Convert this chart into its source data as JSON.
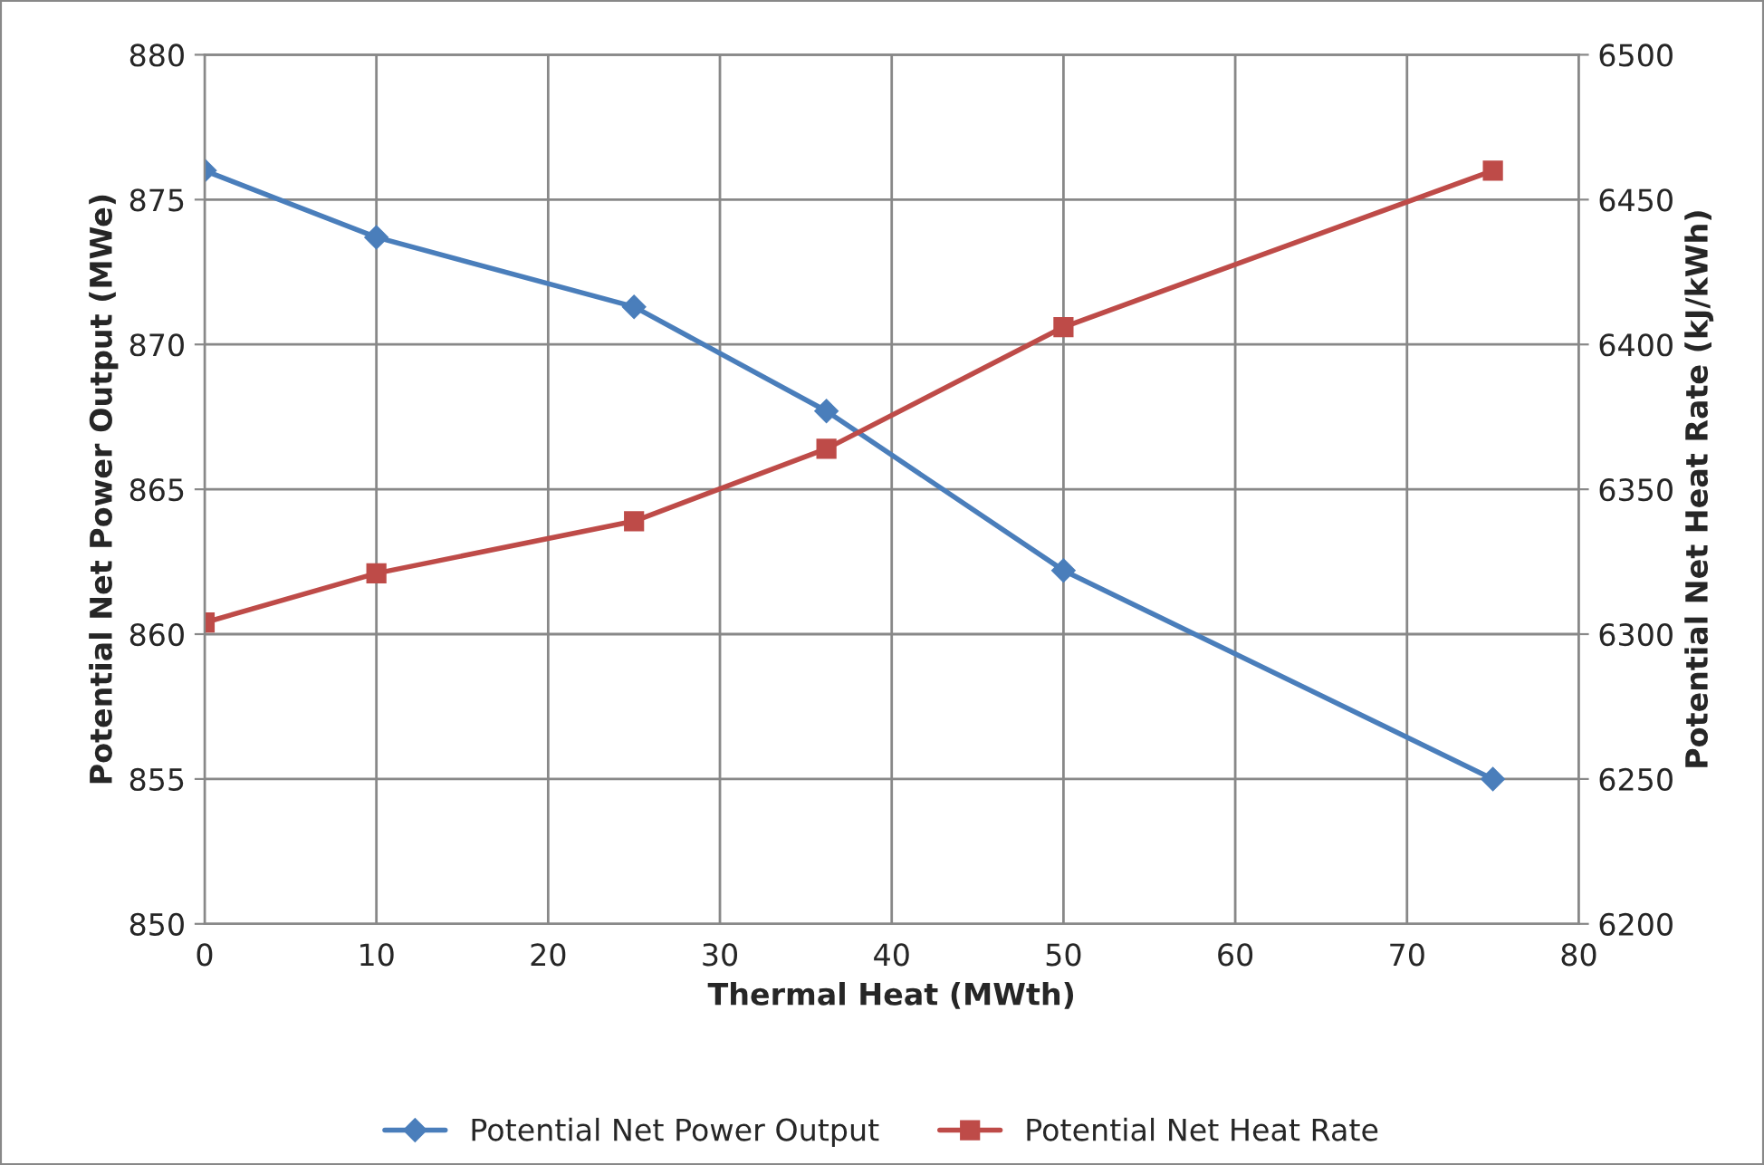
{
  "chart_data": {
    "type": "line",
    "xlabel": "Thermal Heat (MWth)",
    "ylabel": "Potential Net Power Output (MWe)",
    "y2label": "Potential Net Heat Rate (kJ/kWh)",
    "x": [
      0,
      10,
      25,
      36.2,
      50,
      75
    ],
    "series": [
      {
        "name": "Potential Net Power Output",
        "color": "#4a7ebb",
        "marker": "diamond",
        "values": [
          876,
          873.7,
          871.3,
          867.7,
          862.2,
          855
        ]
      },
      {
        "name": "Potential Net Heat Rate",
        "color": "#be4b48",
        "marker": "square",
        "axis": "y2",
        "values": [
          6304,
          6321,
          6339,
          6364,
          6406,
          6460
        ]
      }
    ],
    "xlim": [
      0,
      80
    ],
    "xticks": [
      0,
      10,
      20,
      30,
      40,
      50,
      60,
      70,
      80
    ],
    "ylim": [
      850,
      880
    ],
    "yticks": [
      850,
      855,
      860,
      865,
      870,
      875,
      880
    ],
    "y2lim": [
      6200,
      6500
    ],
    "y2ticks": [
      6200,
      6250,
      6300,
      6350,
      6400,
      6450,
      6500
    ],
    "grid": true,
    "legend": "bottom",
    "line_style": "solid"
  }
}
